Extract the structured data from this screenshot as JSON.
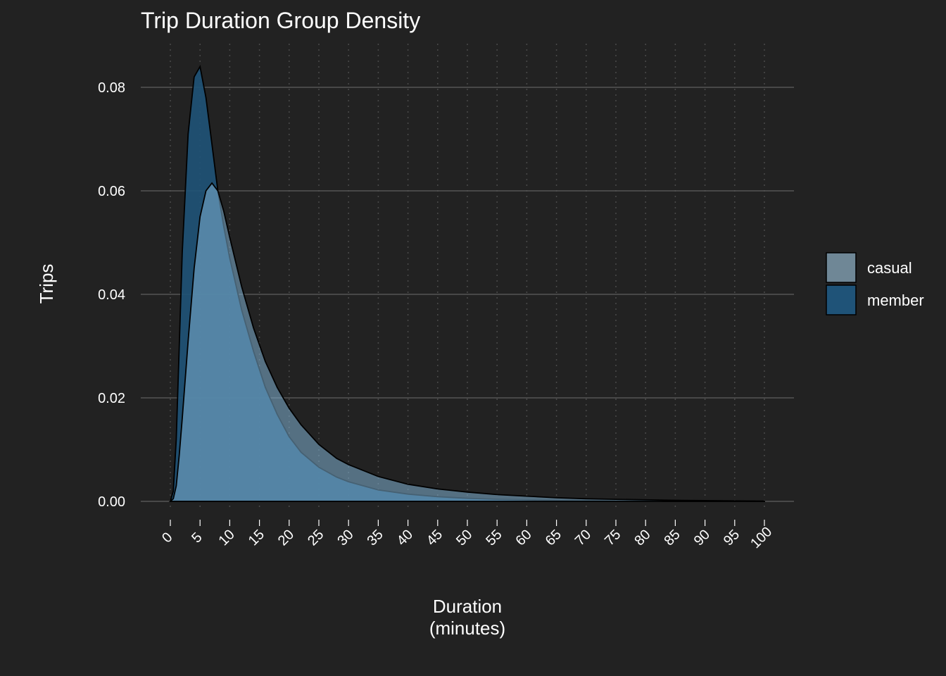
{
  "chart_data": {
    "type": "area",
    "title": "Trip Duration Group Density",
    "xlabel_line1": "Duration",
    "xlabel_line2": "(minutes)",
    "ylabel": "Trips",
    "xlim": [
      0,
      100
    ],
    "ylim": [
      0,
      0.08
    ],
    "x_ticks": [
      0,
      5,
      10,
      15,
      20,
      25,
      30,
      35,
      40,
      45,
      50,
      55,
      60,
      65,
      70,
      75,
      80,
      85,
      90,
      95,
      100
    ],
    "y_ticks": [
      0,
      0.02,
      0.04,
      0.06,
      0.08
    ],
    "y_tick_labels": [
      "0.00",
      "0.02",
      "0.04",
      "0.06",
      "0.08"
    ],
    "grid": true,
    "legend_position": "right",
    "x": [
      0,
      0.5,
      1,
      1.5,
      2,
      3,
      4,
      5,
      6,
      7,
      8,
      9,
      10,
      12,
      14,
      16,
      18,
      20,
      22,
      25,
      28,
      30,
      35,
      40,
      45,
      50,
      55,
      60,
      65,
      70,
      75,
      80,
      85,
      90,
      95,
      100
    ],
    "series": [
      {
        "name": "casual",
        "color": "#6f8796",
        "values": [
          0,
          0.0005,
          0.003,
          0.009,
          0.016,
          0.031,
          0.045,
          0.055,
          0.06,
          0.0615,
          0.06,
          0.056,
          0.051,
          0.0415,
          0.0335,
          0.027,
          0.022,
          0.018,
          0.0148,
          0.011,
          0.0083,
          0.0071,
          0.0048,
          0.0033,
          0.0024,
          0.0018,
          0.0013,
          0.001,
          0.0007,
          0.0005,
          0.0004,
          0.0003,
          0.0002,
          0.00015,
          0.0001,
          5e-05
        ]
      },
      {
        "name": "member",
        "color": "#1f5378",
        "values": [
          0,
          0.002,
          0.012,
          0.03,
          0.048,
          0.071,
          0.082,
          0.084,
          0.078,
          0.069,
          0.06,
          0.053,
          0.047,
          0.037,
          0.029,
          0.022,
          0.0168,
          0.0125,
          0.0095,
          0.0066,
          0.0047,
          0.0038,
          0.0022,
          0.0014,
          0.0009,
          0.0006,
          0.0004,
          0.0003,
          0.0002,
          0.00015,
          0.0001,
          8e-05,
          5e-05,
          3e-05,
          2e-05,
          1e-05
        ]
      }
    ]
  },
  "colors": {
    "background": "#222222",
    "grid": "#555555",
    "overlap_fill": "#3f7fab"
  }
}
